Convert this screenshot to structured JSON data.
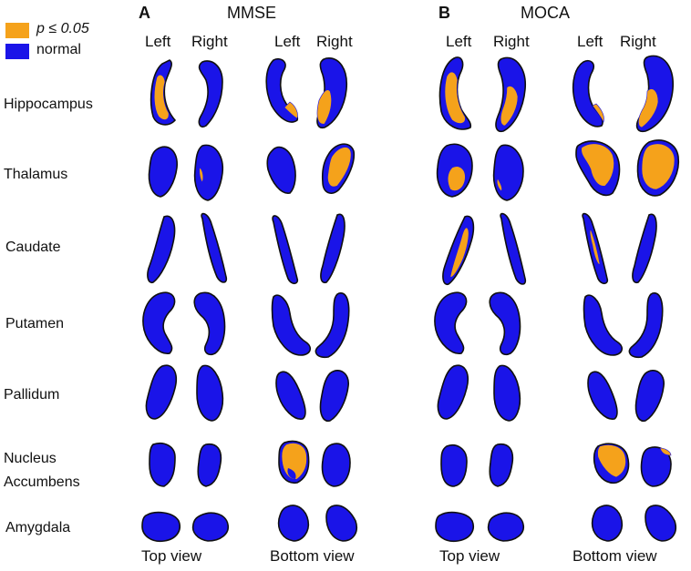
{
  "legend": {
    "items": [
      {
        "label": "p ≤ 0.05",
        "color": "#f5a21b"
      },
      {
        "label": "normal",
        "color": "#1a14e8"
      }
    ]
  },
  "colors": {
    "normal": "#1a14e8",
    "significant": "#f5a21b",
    "outline": "#101010"
  },
  "panels": [
    {
      "letter": "A",
      "title": "MMSE",
      "left_label": "Left",
      "right_label": "Right",
      "top_view": "Top view",
      "bottom_view": "Bottom view"
    },
    {
      "letter": "B",
      "title": "MOCA",
      "left_label": "Left",
      "right_label": "Right",
      "top_view": "Top view",
      "bottom_view": "Bottom view"
    }
  ],
  "structures": [
    {
      "name": "Hippocampus",
      "line1": "Hippocampus",
      "line2": ""
    },
    {
      "name": "Thalamus",
      "line1": "Thalamus",
      "line2": ""
    },
    {
      "name": "Caudate",
      "line1": "Caudate",
      "line2": ""
    },
    {
      "name": "Putamen",
      "line1": "Putamen",
      "line2": ""
    },
    {
      "name": "Pallidum",
      "line1": "Pallidum",
      "line2": ""
    },
    {
      "name": "Nucleus Accumbens",
      "line1": "Nucleus",
      "line2": "Accumbens"
    },
    {
      "name": "Amygdala",
      "line1": "Amygdala",
      "line2": ""
    }
  ]
}
